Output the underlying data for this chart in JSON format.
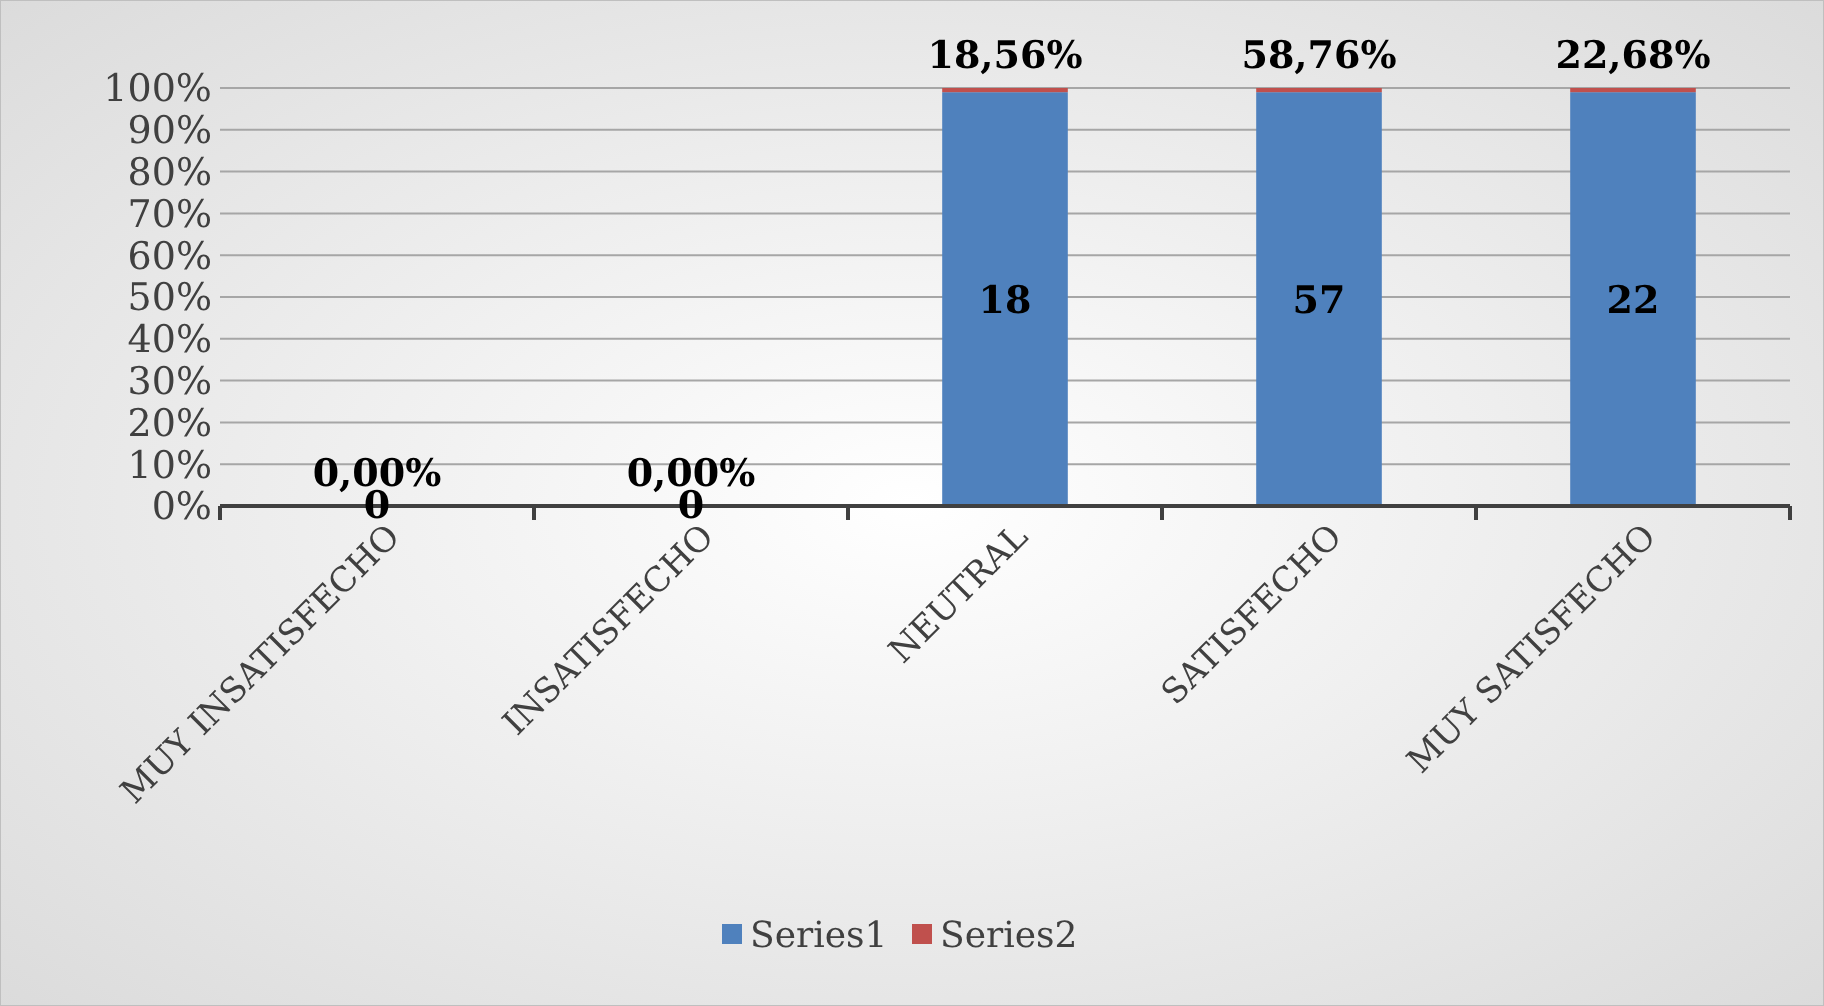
{
  "chart_data": {
    "type": "bar",
    "stacked": true,
    "categories": [
      "MUY INSATISFECHO",
      "INSATISFECHO",
      "NEUTRAL",
      "SATISFECHO",
      "MUY SATISFECHO"
    ],
    "series": [
      {
        "name": "Series1",
        "color": "#4f81bd",
        "values": [
          0,
          0,
          99,
          99,
          99
        ]
      },
      {
        "name": "Series2",
        "color": "#c0504d",
        "values": [
          0,
          0,
          1,
          1,
          1
        ]
      }
    ],
    "annotations": [
      {
        "text": "0,00%",
        "x": "MUY INSATISFECHO",
        "y": 0
      },
      {
        "text": "0",
        "x": "MUY INSATISFECHO",
        "y": 0
      },
      {
        "text": "0,00%",
        "x": "INSATISFECHO",
        "y": 0
      },
      {
        "text": "0",
        "x": "INSATISFECHO",
        "y": 0
      },
      {
        "text": "18,56%",
        "x": "NEUTRAL",
        "y": 100
      },
      "18",
      {
        "text": "58,76%",
        "x": "SATISFECHO",
        "y": 100
      },
      "57",
      {
        "text": "22,68%",
        "x": "MUY SATISFECHO",
        "y": 100
      },
      "22"
    ],
    "ylim": [
      0,
      100
    ],
    "yticks": [
      {
        "value": 0,
        "label": "0%"
      },
      {
        "value": 10,
        "label": "10%"
      },
      {
        "value": 20,
        "label": "20%"
      },
      {
        "value": 30,
        "label": "30%"
      },
      {
        "value": 40,
        "label": "40%"
      },
      {
        "value": 50,
        "label": "50%"
      },
      {
        "value": 60,
        "label": "60%"
      },
      {
        "value": 70,
        "label": "70%"
      },
      {
        "value": 80,
        "label": "80%"
      },
      {
        "value": 90,
        "label": "90%"
      },
      {
        "value": 100,
        "label": "100%"
      }
    ],
    "grid": "y",
    "legend": "bottom"
  }
}
